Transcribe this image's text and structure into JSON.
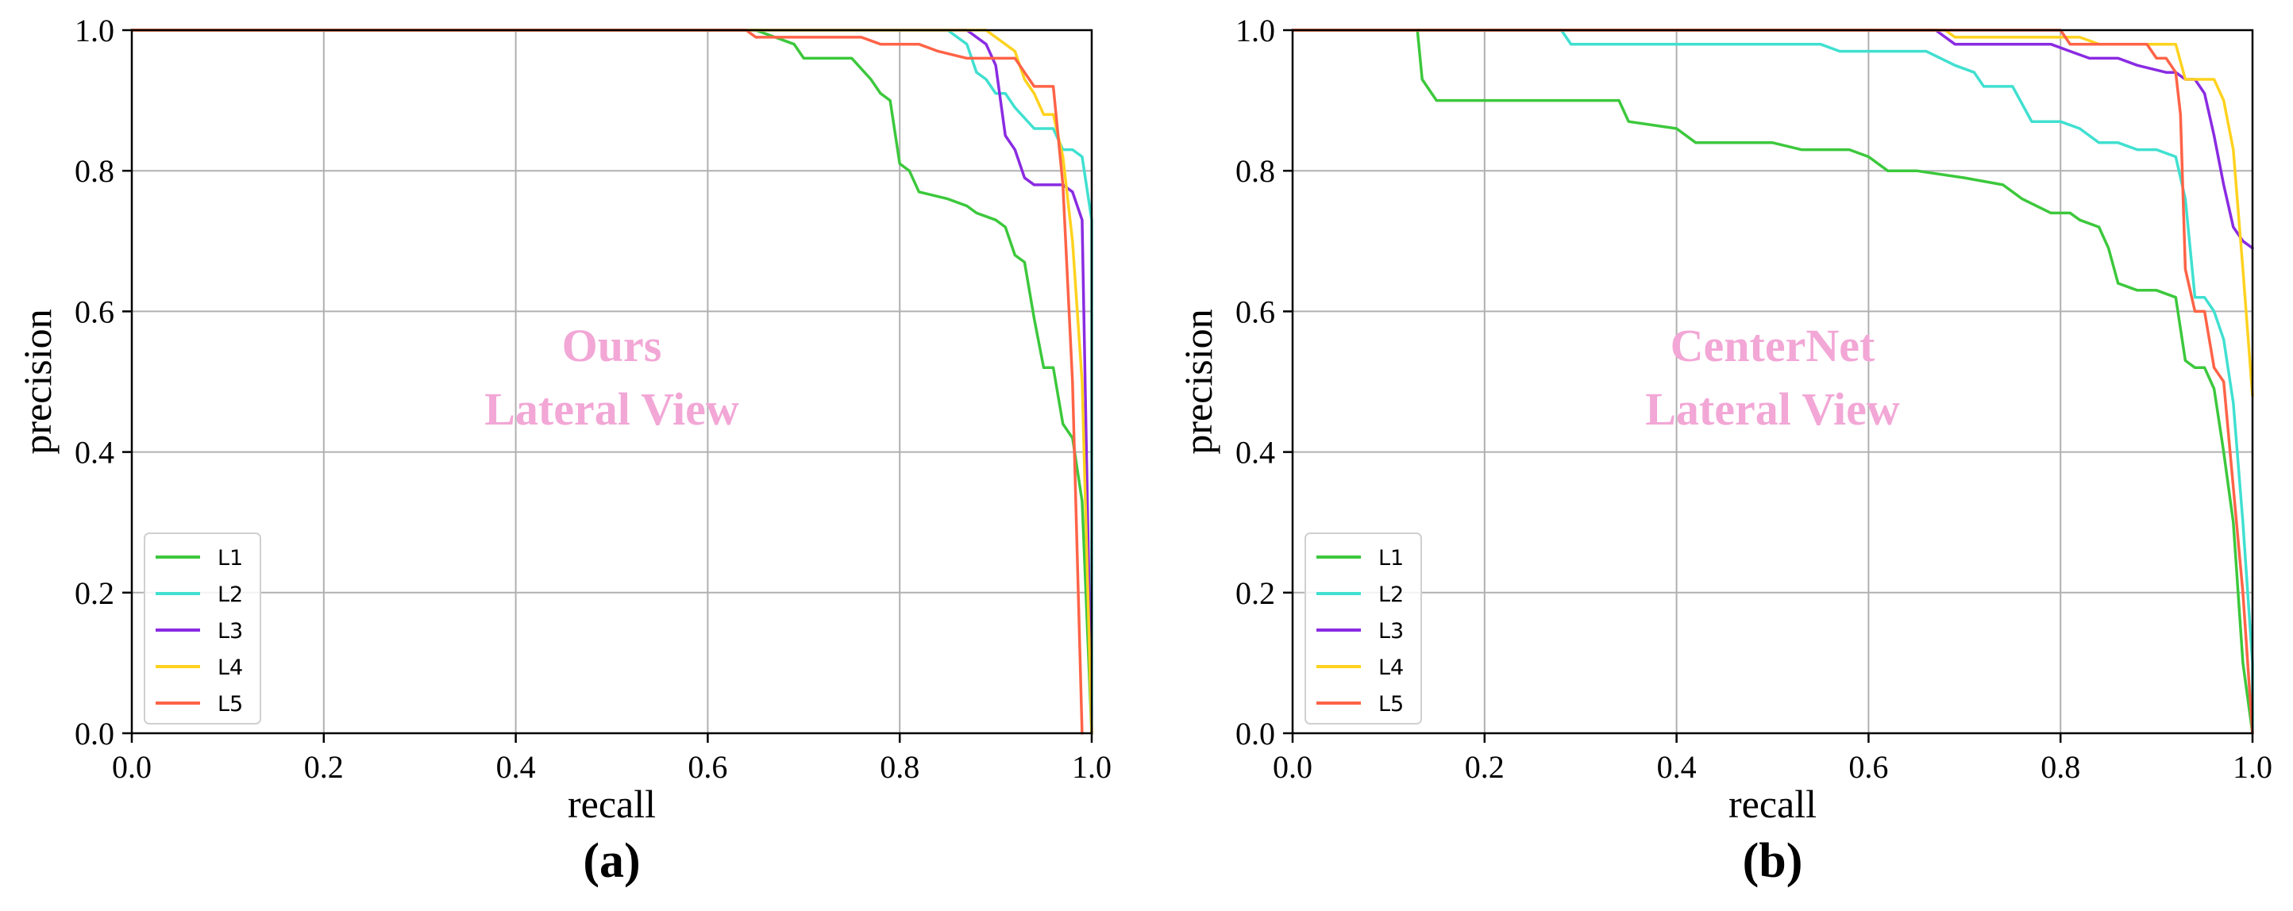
{
  "colors": {
    "L1": "#3cc83c",
    "L2": "#40e0d0",
    "L3": "#8a2be2",
    "L4": "#ffd21e",
    "L5": "#ff6347",
    "watermark": "#f2a7d6"
  },
  "chart_data": [
    {
      "type": "line",
      "panel_label": "(a)",
      "watermark": [
        "Ours",
        "Lateral View"
      ],
      "xlabel": "recall",
      "ylabel": "precision",
      "xlim": [
        0.0,
        1.0
      ],
      "ylim": [
        0.0,
        1.0
      ],
      "xticks": [
        "0.0",
        "0.2",
        "0.4",
        "0.6",
        "0.8",
        "1.0"
      ],
      "yticks": [
        "0.0",
        "0.2",
        "0.4",
        "0.6",
        "0.8",
        "1.0"
      ],
      "grid": true,
      "legend_position": "lower-left",
      "series": [
        {
          "name": "L1",
          "color_key": "L1",
          "points": [
            [
              0,
              1
            ],
            [
              0.65,
              1
            ],
            [
              0.69,
              0.98
            ],
            [
              0.7,
              0.96
            ],
            [
              0.75,
              0.96
            ],
            [
              0.77,
              0.93
            ],
            [
              0.78,
              0.91
            ],
            [
              0.79,
              0.9
            ],
            [
              0.8,
              0.81
            ],
            [
              0.81,
              0.8
            ],
            [
              0.82,
              0.77
            ],
            [
              0.85,
              0.76
            ],
            [
              0.87,
              0.75
            ],
            [
              0.88,
              0.74
            ],
            [
              0.9,
              0.73
            ],
            [
              0.91,
              0.72
            ],
            [
              0.92,
              0.68
            ],
            [
              0.93,
              0.67
            ],
            [
              0.94,
              0.59
            ],
            [
              0.95,
              0.52
            ],
            [
              0.96,
              0.52
            ],
            [
              0.97,
              0.44
            ],
            [
              0.98,
              0.42
            ],
            [
              0.99,
              0.33
            ],
            [
              1.0,
              0.0
            ]
          ]
        },
        {
          "name": "L2",
          "color_key": "L2",
          "points": [
            [
              0,
              1
            ],
            [
              0.85,
              1
            ],
            [
              0.86,
              0.99
            ],
            [
              0.87,
              0.98
            ],
            [
              0.88,
              0.94
            ],
            [
              0.89,
              0.93
            ],
            [
              0.9,
              0.91
            ],
            [
              0.91,
              0.91
            ],
            [
              0.92,
              0.89
            ],
            [
              0.94,
              0.86
            ],
            [
              0.96,
              0.86
            ],
            [
              0.97,
              0.83
            ],
            [
              0.98,
              0.83
            ],
            [
              0.99,
              0.82
            ],
            [
              1.0,
              0.73
            ],
            [
              1.0,
              0.0
            ]
          ]
        },
        {
          "name": "L3",
          "color_key": "L3",
          "points": [
            [
              0,
              1
            ],
            [
              0.87,
              1
            ],
            [
              0.89,
              0.98
            ],
            [
              0.9,
              0.95
            ],
            [
              0.91,
              0.85
            ],
            [
              0.92,
              0.83
            ],
            [
              0.93,
              0.79
            ],
            [
              0.94,
              0.78
            ],
            [
              0.97,
              0.78
            ],
            [
              0.98,
              0.77
            ],
            [
              0.99,
              0.73
            ],
            [
              1.0,
              0.0
            ]
          ]
        },
        {
          "name": "L4",
          "color_key": "L4",
          "points": [
            [
              0,
              1
            ],
            [
              0.89,
              1
            ],
            [
              0.9,
              0.99
            ],
            [
              0.92,
              0.97
            ],
            [
              0.93,
              0.93
            ],
            [
              0.94,
              0.91
            ],
            [
              0.95,
              0.88
            ],
            [
              0.96,
              0.88
            ],
            [
              0.97,
              0.82
            ],
            [
              0.98,
              0.7
            ],
            [
              0.99,
              0.5
            ],
            [
              1.0,
              0.0
            ]
          ]
        },
        {
          "name": "L5",
          "color_key": "L5",
          "points": [
            [
              0,
              1
            ],
            [
              0.64,
              1
            ],
            [
              0.65,
              0.99
            ],
            [
              0.76,
              0.99
            ],
            [
              0.78,
              0.98
            ],
            [
              0.82,
              0.98
            ],
            [
              0.84,
              0.97
            ],
            [
              0.87,
              0.96
            ],
            [
              0.9,
              0.96
            ],
            [
              0.92,
              0.96
            ],
            [
              0.93,
              0.94
            ],
            [
              0.94,
              0.92
            ],
            [
              0.96,
              0.92
            ],
            [
              0.97,
              0.78
            ],
            [
              0.98,
              0.5
            ],
            [
              0.99,
              0.0
            ]
          ]
        }
      ]
    },
    {
      "type": "line",
      "panel_label": "(b)",
      "watermark": [
        "CenterNet",
        "Lateral View"
      ],
      "xlabel": "recall",
      "ylabel": "precision",
      "xlim": [
        0.0,
        1.0
      ],
      "ylim": [
        0.0,
        1.0
      ],
      "xticks": [
        "0.0",
        "0.2",
        "0.4",
        "0.6",
        "0.8",
        "1.0"
      ],
      "yticks": [
        "0.0",
        "0.2",
        "0.4",
        "0.6",
        "0.8",
        "1.0"
      ],
      "grid": true,
      "legend_position": "lower-left",
      "series": [
        {
          "name": "L1",
          "color_key": "L1",
          "points": [
            [
              0,
              1
            ],
            [
              0.13,
              1
            ],
            [
              0.135,
              0.93
            ],
            [
              0.15,
              0.9
            ],
            [
              0.34,
              0.9
            ],
            [
              0.35,
              0.87
            ],
            [
              0.4,
              0.86
            ],
            [
              0.42,
              0.84
            ],
            [
              0.5,
              0.84
            ],
            [
              0.53,
              0.83
            ],
            [
              0.58,
              0.83
            ],
            [
              0.6,
              0.82
            ],
            [
              0.62,
              0.8
            ],
            [
              0.65,
              0.8
            ],
            [
              0.7,
              0.79
            ],
            [
              0.74,
              0.78
            ],
            [
              0.76,
              0.76
            ],
            [
              0.79,
              0.74
            ],
            [
              0.81,
              0.74
            ],
            [
              0.82,
              0.73
            ],
            [
              0.84,
              0.72
            ],
            [
              0.85,
              0.69
            ],
            [
              0.86,
              0.64
            ],
            [
              0.88,
              0.63
            ],
            [
              0.9,
              0.63
            ],
            [
              0.92,
              0.62
            ],
            [
              0.93,
              0.53
            ],
            [
              0.94,
              0.52
            ],
            [
              0.95,
              0.52
            ],
            [
              0.96,
              0.49
            ],
            [
              0.97,
              0.4
            ],
            [
              0.98,
              0.3
            ],
            [
              0.99,
              0.1
            ],
            [
              1.0,
              0.0
            ]
          ]
        },
        {
          "name": "L2",
          "color_key": "L2",
          "points": [
            [
              0,
              1
            ],
            [
              0.28,
              1
            ],
            [
              0.29,
              0.98
            ],
            [
              0.55,
              0.98
            ],
            [
              0.57,
              0.97
            ],
            [
              0.66,
              0.97
            ],
            [
              0.69,
              0.95
            ],
            [
              0.71,
              0.94
            ],
            [
              0.72,
              0.92
            ],
            [
              0.75,
              0.92
            ],
            [
              0.77,
              0.87
            ],
            [
              0.8,
              0.87
            ],
            [
              0.82,
              0.86
            ],
            [
              0.84,
              0.84
            ],
            [
              0.86,
              0.84
            ],
            [
              0.88,
              0.83
            ],
            [
              0.9,
              0.83
            ],
            [
              0.92,
              0.82
            ],
            [
              0.93,
              0.76
            ],
            [
              0.94,
              0.62
            ],
            [
              0.95,
              0.62
            ],
            [
              0.96,
              0.6
            ],
            [
              0.97,
              0.56
            ],
            [
              0.98,
              0.47
            ],
            [
              0.99,
              0.3
            ],
            [
              1.0,
              0.1
            ],
            [
              1.0,
              0.0
            ]
          ]
        },
        {
          "name": "L3",
          "color_key": "L3",
          "points": [
            [
              0,
              1
            ],
            [
              0.67,
              1
            ],
            [
              0.69,
              0.98
            ],
            [
              0.79,
              0.98
            ],
            [
              0.81,
              0.97
            ],
            [
              0.83,
              0.96
            ],
            [
              0.86,
              0.96
            ],
            [
              0.88,
              0.95
            ],
            [
              0.91,
              0.94
            ],
            [
              0.92,
              0.94
            ],
            [
              0.93,
              0.93
            ],
            [
              0.94,
              0.93
            ],
            [
              0.95,
              0.91
            ],
            [
              0.96,
              0.85
            ],
            [
              0.97,
              0.78
            ],
            [
              0.98,
              0.72
            ],
            [
              0.99,
              0.7
            ],
            [
              1.0,
              0.69
            ]
          ]
        },
        {
          "name": "L4",
          "color_key": "L4",
          "points": [
            [
              0,
              1
            ],
            [
              0.68,
              1
            ],
            [
              0.69,
              0.99
            ],
            [
              0.82,
              0.99
            ],
            [
              0.84,
              0.98
            ],
            [
              0.9,
              0.98
            ],
            [
              0.92,
              0.98
            ],
            [
              0.93,
              0.93
            ],
            [
              0.96,
              0.93
            ],
            [
              0.97,
              0.9
            ],
            [
              0.98,
              0.83
            ],
            [
              0.99,
              0.66
            ],
            [
              1.0,
              0.48
            ]
          ]
        },
        {
          "name": "L5",
          "color_key": "L5",
          "points": [
            [
              0,
              1
            ],
            [
              0.8,
              1
            ],
            [
              0.81,
              0.98
            ],
            [
              0.89,
              0.98
            ],
            [
              0.9,
              0.96
            ],
            [
              0.91,
              0.96
            ],
            [
              0.92,
              0.94
            ],
            [
              0.925,
              0.88
            ],
            [
              0.93,
              0.66
            ],
            [
              0.94,
              0.6
            ],
            [
              0.95,
              0.6
            ],
            [
              0.96,
              0.52
            ],
            [
              0.97,
              0.5
            ],
            [
              0.98,
              0.35
            ],
            [
              0.99,
              0.2
            ],
            [
              1.0,
              0.0
            ]
          ]
        }
      ]
    }
  ]
}
